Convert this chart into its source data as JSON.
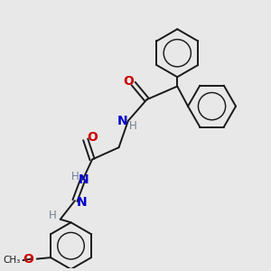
{
  "background_color": "#e8e8e8",
  "bond_color": "#1a1a1a",
  "nitrogen_color": "#0000cc",
  "oxygen_color": "#cc0000",
  "gray_color": "#708090",
  "line_width": 1.4,
  "figsize": [
    3.0,
    3.0
  ],
  "dpi": 100,
  "xlim": [
    0,
    10
  ],
  "ylim": [
    0,
    10
  ]
}
